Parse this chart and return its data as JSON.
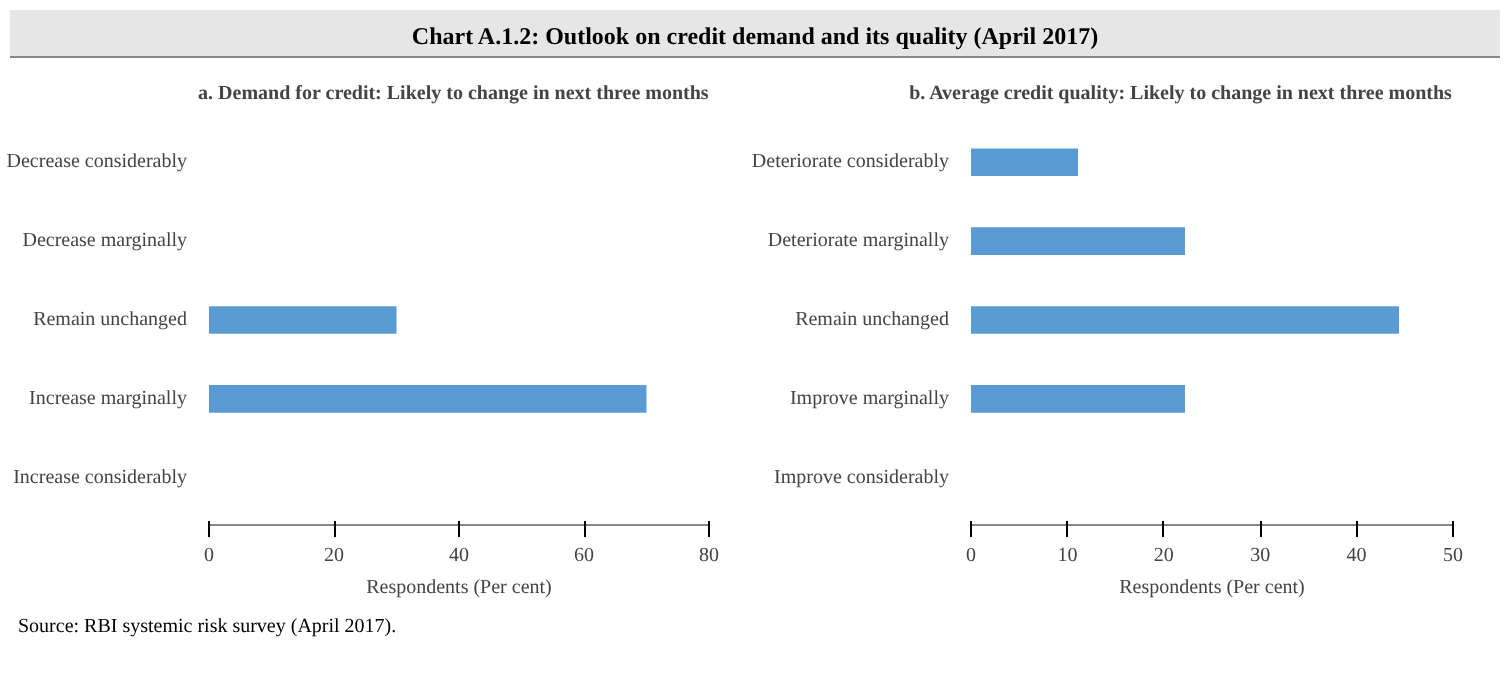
{
  "chart_data": [
    {
      "type": "bar",
      "orientation": "horizontal",
      "title": "Chart A.1.2: Outlook on credit demand and its quality (April 2017)",
      "subtitle": "a. Demand for credit: Likely to change in next three months",
      "xlabel": "Respondents (Per cent)",
      "categories": [
        "Decrease considerably",
        "Decrease marginally",
        "Remain unchanged",
        "Increase marginally",
        "Increase considerably"
      ],
      "values": [
        null,
        null,
        30,
        70,
        null
      ],
      "color": "#5b9bd5",
      "xlim": [
        0,
        80
      ],
      "xticks": [
        0,
        20,
        40,
        60,
        80
      ],
      "grid": false,
      "annotations": [
        "Source: RBI systemic risk survey (April 2017)."
      ]
    },
    {
      "type": "bar",
      "orientation": "horizontal",
      "subtitle": "b. Average credit quality: Likely to change in next three months",
      "xlabel": "Respondents (Per cent)",
      "categories": [
        "Deteriorate considerably",
        "Deteriorate marginally",
        "Remain unchanged",
        "Improve marginally",
        "Improve considerably"
      ],
      "values": [
        11.1,
        22.2,
        44.4,
        22.2,
        null
      ],
      "color": "#5b9bd5",
      "xlim": [
        0,
        50
      ],
      "xticks": [
        0,
        10,
        20,
        30,
        40,
        50
      ],
      "grid": false
    }
  ]
}
